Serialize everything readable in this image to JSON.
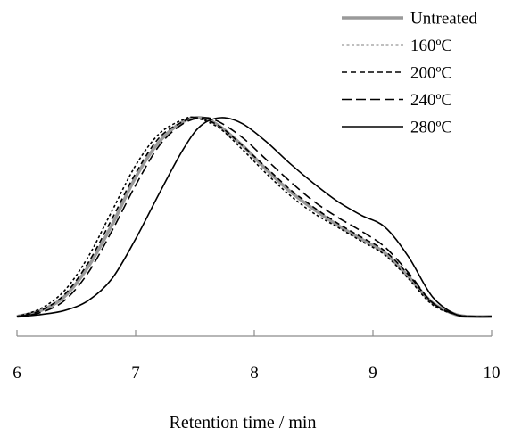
{
  "chart_data": {
    "type": "line",
    "title": "",
    "xlabel": "Retention time / min",
    "ylabel": "",
    "xlim": [
      6,
      10
    ],
    "ylim": [
      0,
      1.0
    ],
    "xticks": [
      "6",
      "7",
      "8",
      "9",
      "10"
    ],
    "grid": false,
    "legend_position": "top-right",
    "series": [
      {
        "name": "Untreated",
        "color": "#9a9a9a",
        "dash": "solid",
        "width": "thick",
        "x": [
          6.0,
          6.2,
          6.4,
          6.6,
          6.8,
          7.0,
          7.2,
          7.4,
          7.55,
          7.7,
          7.9,
          8.1,
          8.3,
          8.5,
          8.7,
          8.9,
          9.1,
          9.3,
          9.5,
          9.7,
          9.85,
          10.0
        ],
        "y": [
          0.0,
          0.03,
          0.1,
          0.25,
          0.46,
          0.7,
          0.88,
          0.98,
          1.0,
          0.96,
          0.86,
          0.74,
          0.63,
          0.54,
          0.46,
          0.39,
          0.32,
          0.2,
          0.07,
          0.01,
          0.0,
          0.0
        ]
      },
      {
        "name": "160ºC",
        "color": "#000000",
        "dash": "dotted",
        "width": "thin",
        "x": [
          6.0,
          6.2,
          6.4,
          6.6,
          6.8,
          7.0,
          7.2,
          7.4,
          7.5,
          7.7,
          7.9,
          8.1,
          8.3,
          8.5,
          8.7,
          8.9,
          9.1,
          9.3,
          9.5,
          9.7,
          9.85,
          10.0
        ],
        "y": [
          0.0,
          0.04,
          0.13,
          0.3,
          0.53,
          0.76,
          0.92,
          0.99,
          1.0,
          0.95,
          0.84,
          0.72,
          0.61,
          0.52,
          0.45,
          0.38,
          0.31,
          0.19,
          0.06,
          0.01,
          0.0,
          0.0
        ]
      },
      {
        "name": "200ºC",
        "color": "#000000",
        "dash": "short-dash",
        "width": "thin",
        "x": [
          6.0,
          6.2,
          6.4,
          6.6,
          6.8,
          7.0,
          7.2,
          7.4,
          7.52,
          7.7,
          7.9,
          8.1,
          8.3,
          8.5,
          8.7,
          8.9,
          9.1,
          9.3,
          9.5,
          9.7,
          9.85,
          10.0
        ],
        "y": [
          0.0,
          0.03,
          0.11,
          0.27,
          0.49,
          0.72,
          0.9,
          0.98,
          1.0,
          0.96,
          0.86,
          0.75,
          0.64,
          0.55,
          0.47,
          0.4,
          0.33,
          0.21,
          0.07,
          0.01,
          0.0,
          0.0
        ]
      },
      {
        "name": "240ºC",
        "color": "#000000",
        "dash": "long-dash",
        "width": "thin",
        "x": [
          6.0,
          6.2,
          6.4,
          6.6,
          6.8,
          7.0,
          7.2,
          7.4,
          7.57,
          7.7,
          7.9,
          8.1,
          8.3,
          8.5,
          8.7,
          8.9,
          9.1,
          9.3,
          9.5,
          9.7,
          9.85,
          10.0
        ],
        "y": [
          0.0,
          0.02,
          0.08,
          0.22,
          0.43,
          0.66,
          0.86,
          0.97,
          1.0,
          0.98,
          0.9,
          0.79,
          0.68,
          0.58,
          0.5,
          0.43,
          0.35,
          0.22,
          0.07,
          0.01,
          0.0,
          0.0
        ]
      },
      {
        "name": "280ºC",
        "color": "#000000",
        "dash": "solid",
        "width": "thin",
        "x": [
          6.0,
          6.2,
          6.4,
          6.6,
          6.8,
          7.0,
          7.2,
          7.4,
          7.55,
          7.72,
          7.9,
          8.1,
          8.3,
          8.5,
          8.7,
          8.9,
          9.1,
          9.3,
          9.5,
          9.7,
          9.85,
          10.0
        ],
        "y": [
          0.0,
          0.01,
          0.03,
          0.08,
          0.19,
          0.39,
          0.62,
          0.84,
          0.96,
          1.0,
          0.97,
          0.88,
          0.77,
          0.67,
          0.58,
          0.51,
          0.45,
          0.3,
          0.1,
          0.01,
          0.0,
          0.0
        ]
      }
    ]
  }
}
